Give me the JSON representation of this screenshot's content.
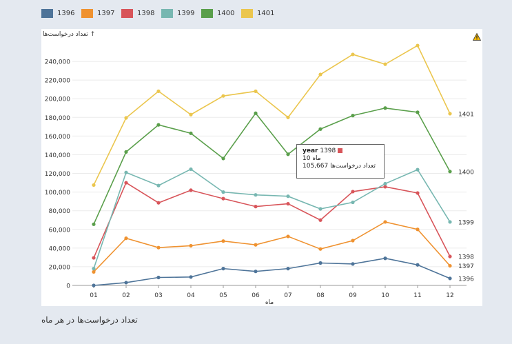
{
  "legend": [
    {
      "label": "1396",
      "color": "#4e7499"
    },
    {
      "label": "1397",
      "color": "#ef9230"
    },
    {
      "label": "1398",
      "color": "#d8555a"
    },
    {
      "label": "1399",
      "color": "#77b7b1"
    },
    {
      "label": "1400",
      "color": "#5a9f4b"
    },
    {
      "label": "1401",
      "color": "#ebc64e"
    }
  ],
  "tooltip": {
    "year_key": "year",
    "year_value": "1398",
    "month_key": "ماه",
    "month_value": "10",
    "count_key": "تعداد درخواست‌ها",
    "count_value": "105,667"
  },
  "caption": "تعداد درخواست‌ها در هر ماه",
  "chart_data": {
    "type": "line",
    "ylabel": "تعداد درخواست‌ها ↑",
    "xlabel": "ماه",
    "categories": [
      "01",
      "02",
      "03",
      "04",
      "05",
      "06",
      "07",
      "08",
      "09",
      "10",
      "11",
      "12"
    ],
    "ylim": [
      0,
      260000
    ],
    "yticks": [
      0,
      20000,
      40000,
      60000,
      80000,
      100000,
      120000,
      140000,
      160000,
      180000,
      200000,
      220000,
      240000
    ],
    "ytick_labels": [
      "0",
      "20,000",
      "40,000",
      "60,000",
      "80,000",
      "100,000",
      "120,000",
      "140,000",
      "160,000",
      "180,000",
      "200,000",
      "220,000",
      "240,000"
    ],
    "grid": "horizontal",
    "series": [
      {
        "name": "1396",
        "color": "#4e7499",
        "values": [
          0,
          3000,
          8500,
          9000,
          18000,
          15000,
          18000,
          24000,
          23000,
          29000,
          22000,
          7500
        ]
      },
      {
        "name": "1397",
        "color": "#ef9230",
        "values": [
          14500,
          50500,
          40500,
          42500,
          47500,
          43500,
          52500,
          39000,
          48000,
          68000,
          60000,
          21000
        ]
      },
      {
        "name": "1398",
        "color": "#d8555a",
        "values": [
          29500,
          110000,
          88500,
          102000,
          93000,
          84500,
          87500,
          70000,
          100500,
          105667,
          99000,
          31000
        ]
      },
      {
        "name": "1399",
        "color": "#77b7b1",
        "values": [
          18000,
          121000,
          107000,
          124500,
          100000,
          97000,
          95500,
          82000,
          89000,
          109000,
          124000,
          68000
        ]
      },
      {
        "name": "1400",
        "color": "#5a9f4b",
        "values": [
          65500,
          143000,
          172000,
          163000,
          136000,
          184500,
          140500,
          167500,
          182000,
          190000,
          185500,
          122000
        ]
      },
      {
        "name": "1401",
        "color": "#ebc64e",
        "values": [
          107500,
          179500,
          208000,
          183000,
          203000,
          208000,
          180000,
          226000,
          247500,
          237000,
          257000,
          184000
        ]
      }
    ]
  }
}
